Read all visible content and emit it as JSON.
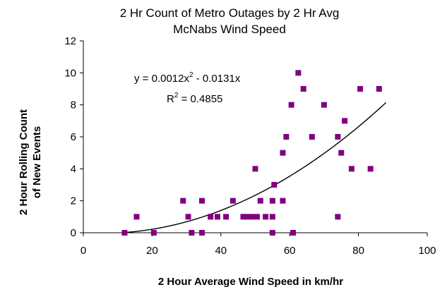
{
  "chart_data": {
    "type": "scatter",
    "title_lines": [
      "2 Hr Count of Metro Outages by 2 Hr Avg",
      "McNabs Wind Speed"
    ],
    "xlabel": "2 Hour Average Wind Speed in km/hr",
    "ylabel_lines": [
      "2 Hour Rolling Count",
      "of  New Events"
    ],
    "xlim": [
      0,
      100
    ],
    "ylim": [
      0,
      12
    ],
    "x_ticks": [
      "0",
      "20",
      "40",
      "60",
      "80",
      "100"
    ],
    "y_ticks": [
      "0",
      "2",
      "4",
      "6",
      "8",
      "10",
      "12"
    ],
    "grid": false,
    "marker_color": "#800080",
    "trendline": {
      "kind": "polynomial",
      "coefficients": {
        "a": 0.0012,
        "b": -0.0131,
        "c": 0
      },
      "x_range": [
        12,
        88
      ],
      "equation": {
        "lhs": "y = 0.0012x",
        "exp": "2",
        "rhs": " - 0.0131x"
      },
      "r_squared": {
        "label": "R",
        "exp": "2",
        "rhs": " = 0.4855"
      }
    },
    "series": [
      {
        "points": [
          [
            12,
            0
          ],
          [
            15.5,
            1
          ],
          [
            20.5,
            0
          ],
          [
            29,
            2
          ],
          [
            30.5,
            1
          ],
          [
            31.5,
            0
          ],
          [
            34.5,
            2
          ],
          [
            34.5,
            0
          ],
          [
            37,
            1
          ],
          [
            39,
            1
          ],
          [
            41.5,
            1
          ],
          [
            43.5,
            2
          ],
          [
            46.5,
            1
          ],
          [
            47.5,
            1
          ],
          [
            49,
            1
          ],
          [
            50,
            4
          ],
          [
            50.5,
            1
          ],
          [
            51.5,
            2
          ],
          [
            53,
            1
          ],
          [
            55,
            1
          ],
          [
            55,
            2
          ],
          [
            55.5,
            3
          ],
          [
            55,
            0
          ],
          [
            58,
            5
          ],
          [
            58,
            2
          ],
          [
            59,
            6
          ],
          [
            60.5,
            8
          ],
          [
            61,
            0
          ],
          [
            62.5,
            10
          ],
          [
            64,
            9
          ],
          [
            66.5,
            6
          ],
          [
            70,
            8
          ],
          [
            74,
            6
          ],
          [
            74,
            1
          ],
          [
            75,
            5
          ],
          [
            76,
            7
          ],
          [
            78,
            4
          ],
          [
            80.5,
            9
          ],
          [
            83.5,
            4
          ],
          [
            86,
            9
          ]
        ]
      }
    ]
  }
}
